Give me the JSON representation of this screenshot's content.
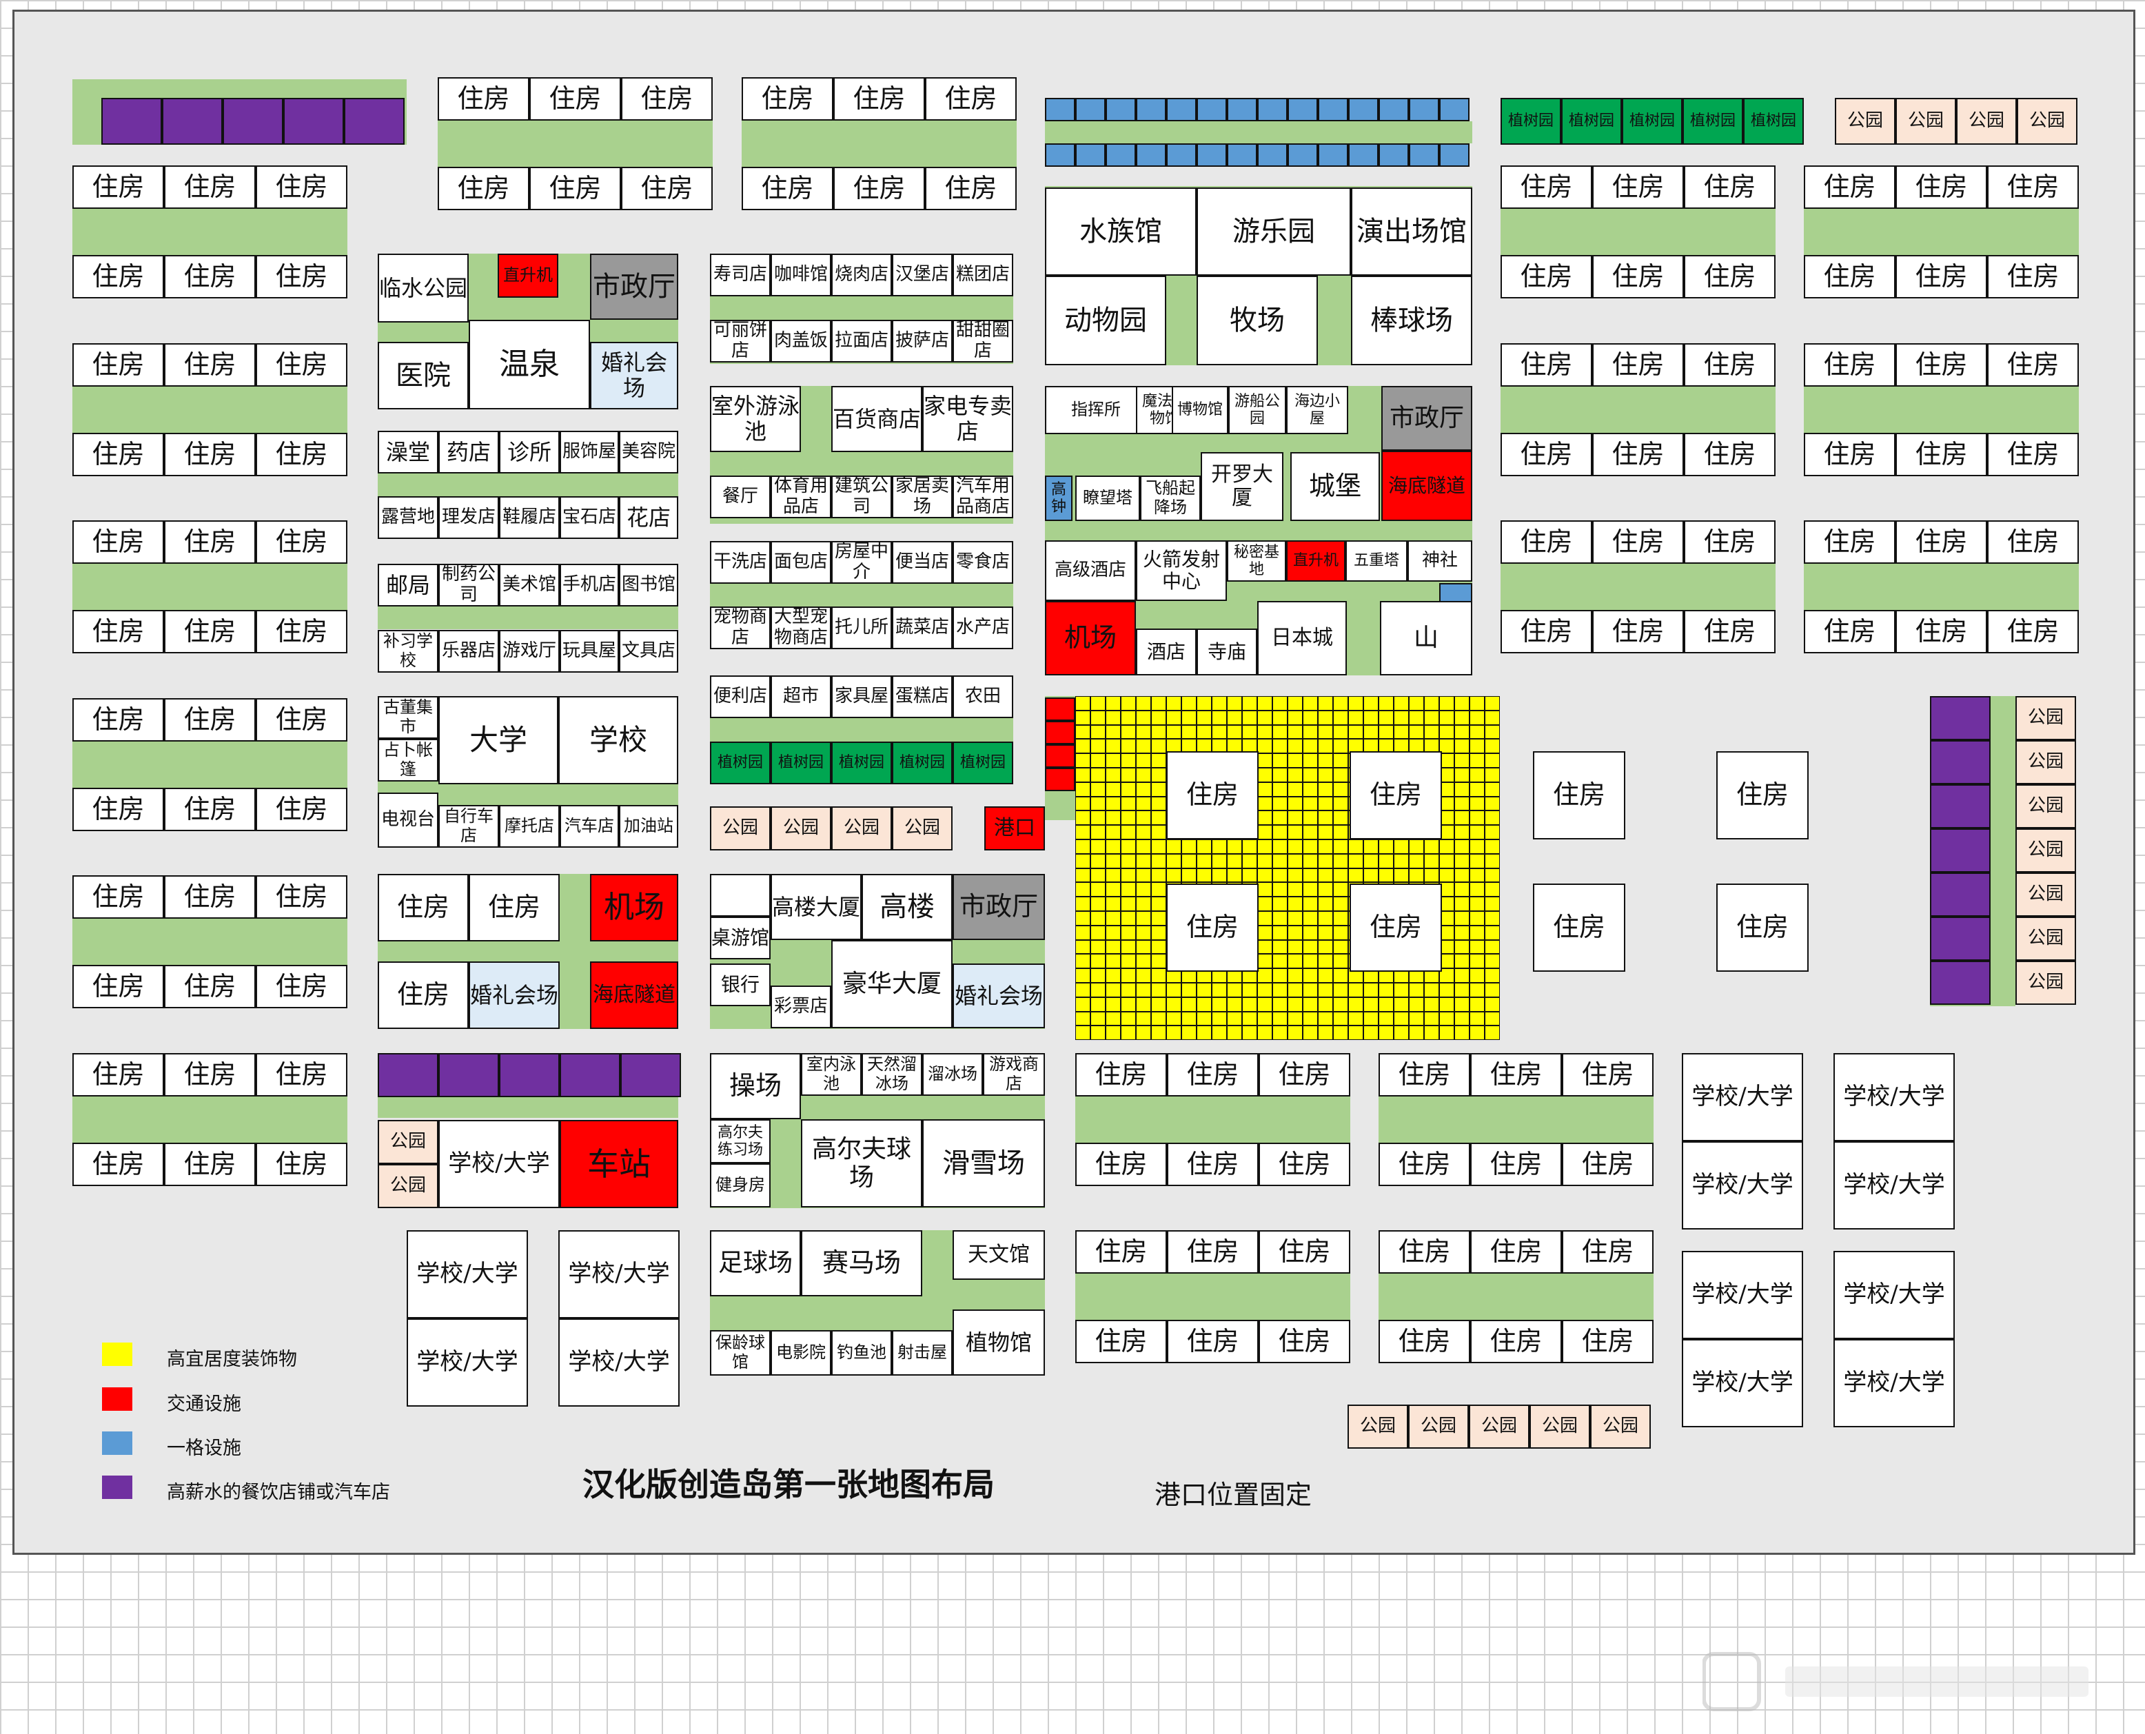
{
  "title": "汉化版创造岛第一张地图布局",
  "note": "港口位置固定",
  "legend": [
    {
      "label": "高宜居度装饰物",
      "color": "#ffff00"
    },
    {
      "label": "交通设施",
      "color": "#ff0000"
    },
    {
      "label": "一格设施",
      "color": "#5b9bd5"
    },
    {
      "label": "高薪水的餐饮店铺或汽车店",
      "color": "#7030a0"
    }
  ],
  "colors": {
    "road": "#a9d18e",
    "deco": "#ffff00",
    "transport": "#ff0000",
    "single": "#5b9bd5",
    "restaurant": "#7030a0",
    "cityhall": "#999999",
    "wedding": "#ddebf7",
    "park": "#fbe5d6",
    "tree": "#00a651"
  },
  "labels": {
    "house": "住房",
    "park": "公园",
    "tree_garden": "植树园",
    "school_univ": "学校/大学",
    "hall": "市政厅",
    "heli": "直升机",
    "tunnel": "海底隧道",
    "airport": "机场",
    "wedding": "婚礼会场",
    "p_riverside": "临水公园",
    "p_spring": "温泉",
    "p_hospital": "医院",
    "p_bath": "澡堂",
    "p_pharmacy": "药店",
    "p_clinic": "诊所",
    "p_clothes": "服饰屋",
    "p_beauty": "美容院",
    "p_camp": "露营地",
    "p_barber": "理发店",
    "p_shoes": "鞋履店",
    "p_jewel": "宝石店",
    "p_flower": "花店",
    "p_post": "邮局",
    "p_pharmaco": "制药公司",
    "p_art": "美术馆",
    "p_phone": "手机店",
    "p_library": "图书馆",
    "p_cram": "补习学校",
    "p_music": "乐器店",
    "p_arcade": "游戏厅",
    "p_toy": "玩具屋",
    "p_stationery": "文具店",
    "p_antique": "古董集市",
    "p_tent": "占卜帐篷",
    "p_univ": "大学",
    "p_school": "学校",
    "p_tv": "电视台",
    "p_bike": "自行车店",
    "p_moto": "摩托店",
    "p_car": "汽车店",
    "p_gas": "加油站",
    "p_station": "车站",
    "p_sushi": "寿司店",
    "p_coffee": "咖啡馆",
    "p_bbq": "烧肉店",
    "p_burger": "汉堡店",
    "p_cake": "糕团店",
    "p_croquette": "可丽饼店",
    "p_rice": "肉盖饭",
    "p_ramen": "拉面店",
    "p_pizza": "披萨店",
    "p_dessert": "甜甜圈店",
    "p_pool": "室外游泳池",
    "p_dept": "百货商店",
    "p_appliance": "家电专卖店",
    "p_restaurant": "餐厅",
    "p_sports": "体育用品店",
    "p_build": "建筑公司",
    "p_furn": "家居卖场",
    "p_carparts": "汽车用品商店",
    "p_laundry": "干洗店",
    "p_bakery": "面包店",
    "p_agent": "房屋中介",
    "p_bento": "便当店",
    "p_snack": "零食店",
    "p_pet": "宠物商店",
    "p_petbig": "大型宠物商店",
    "p_daycare": "托儿所",
    "p_veg": "蔬菜店",
    "p_fish": "水产店",
    "p_conv": "便利店",
    "p_super": "超市",
    "p_furnhouse": "家具屋",
    "p_cakeshop": "蛋糕店",
    "p_farm": "农田",
    "p_port": "港口",
    "p_boardgame": "桌游馆",
    "p_tower": "高楼大厦",
    "p_highrise": "高楼",
    "p_bank": "银行",
    "p_luxury": "豪华大厦",
    "p_lottery": "彩票店",
    "p_field": "操场",
    "p_inpool": "室内泳池",
    "p_icerink": "天然溜冰场",
    "p_skate": "溜冰场",
    "p_gamestore": "游戏商店",
    "p_golfpractice": "高尔夫练习场",
    "p_gym": "健身房",
    "p_golf": "高尔夫球场",
    "p_ski": "滑雪场",
    "p_soccer": "足球场",
    "p_horse": "赛马场",
    "p_astro": "天文馆",
    "p_bowling": "保龄球馆",
    "p_cinema": "电影院",
    "p_fishing": "钓鱼池",
    "p_shooting": "射击屋",
    "p_botanic": "植物馆",
    "p_aquarium": "水族馆",
    "p_amusement": "游乐园",
    "p_show": "演出场馆",
    "p_zoo": "动物园",
    "p_ranch": "牧场",
    "p_baseball": "棒球场",
    "p_command": "指挥所",
    "p_magic": "魔法博物馆",
    "p_museum": "博物馆",
    "p_boatpark": "游船公园",
    "p_seahut": "海边小屋",
    "p_clock": "高钟",
    "p_watch": "瞭望塔",
    "p_airship": "飞船起降场",
    "p_cairo": "开罗大厦",
    "p_castle": "城堡",
    "p_hotel": "高级酒店",
    "p_rocket": "火箭发射中心",
    "p_secret": "秘密基地",
    "p_pagoda": "五重塔",
    "p_shrine": "神社",
    "p_inn": "酒店",
    "p_temple": "寺庙",
    "p_japan": "日本城",
    "p_mountain": "山"
  }
}
